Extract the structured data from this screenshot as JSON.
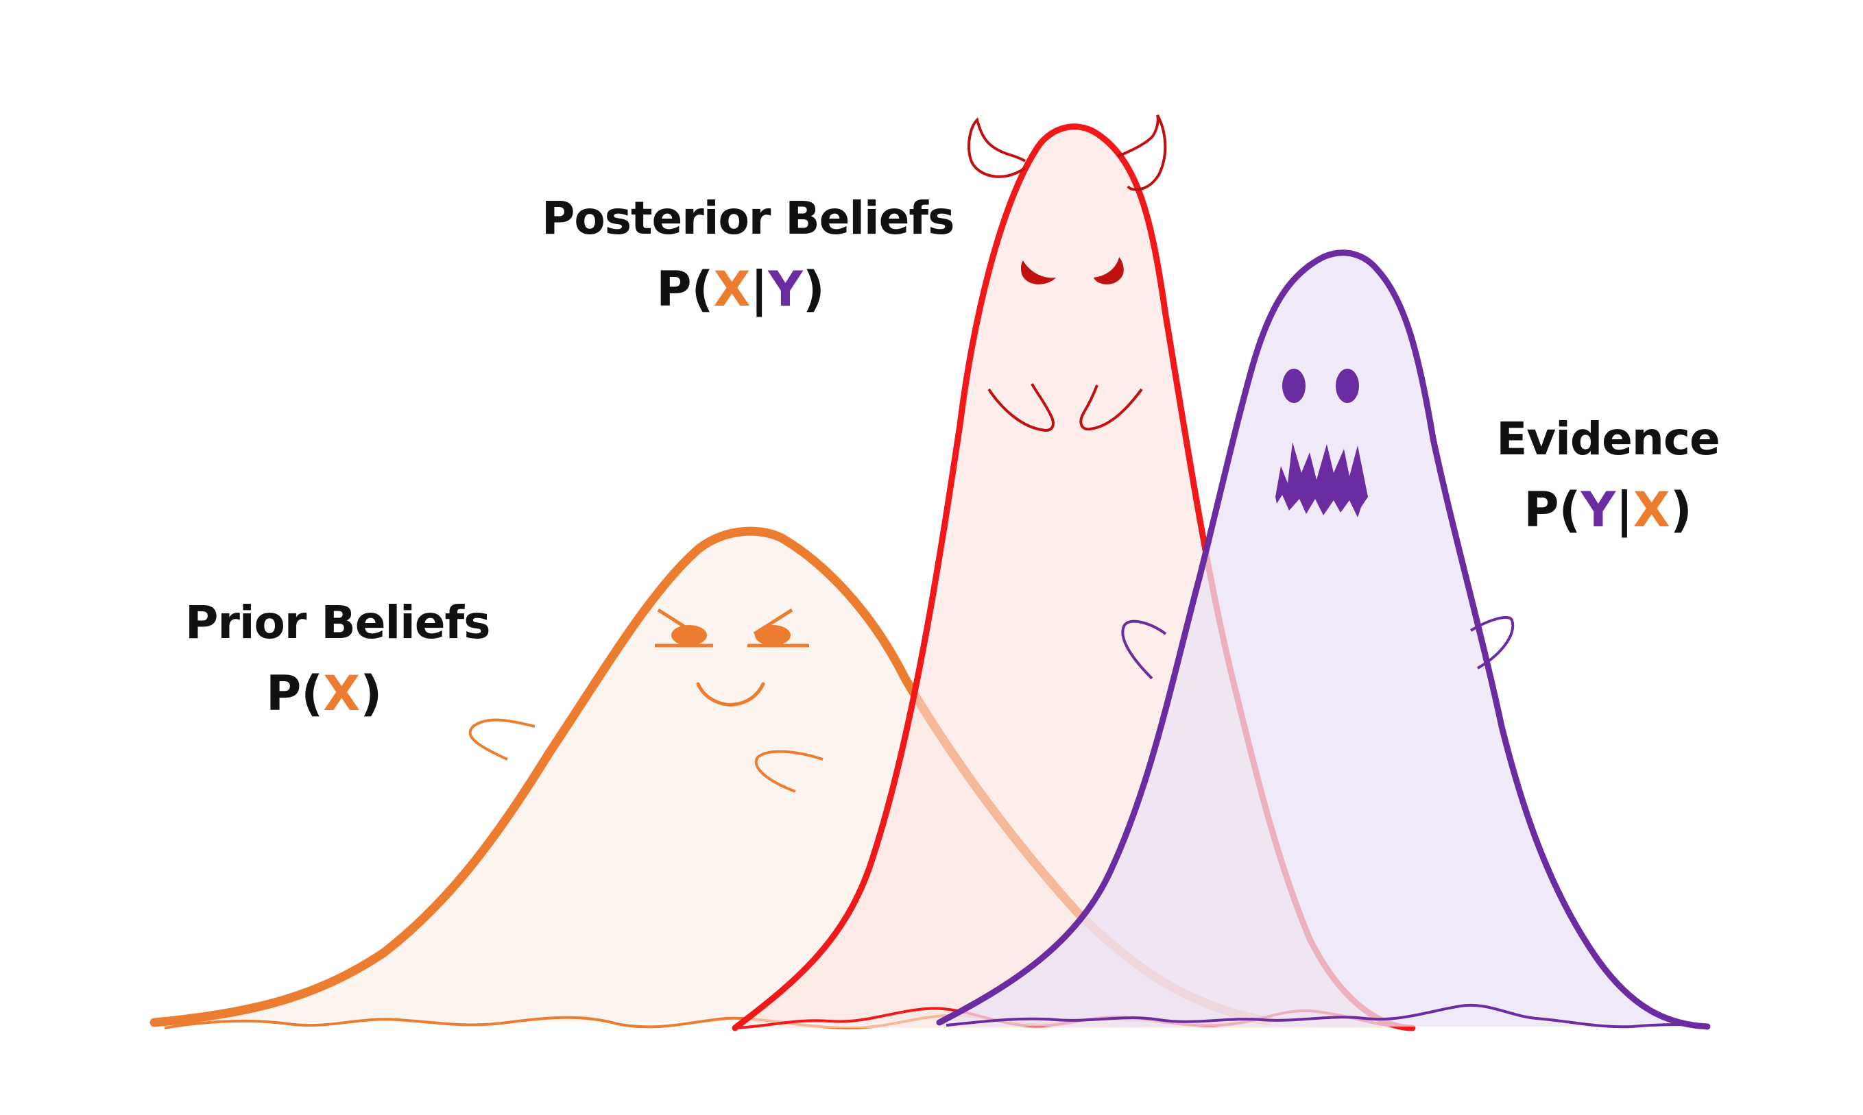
{
  "colors": {
    "prior": "#ec7c30",
    "posterior": "#f01818",
    "evidence": "#6a2ca0",
    "text": "#111111"
  },
  "labels": {
    "prior": {
      "title": "Prior Beliefs",
      "formula": {
        "p": "P(",
        "a": "X",
        "sep": "",
        "b": "",
        "close": ")"
      }
    },
    "posterior": {
      "title": "Posterior Beliefs",
      "formula": {
        "p": "P(",
        "a": "X",
        "sep": "|",
        "b": "Y",
        "close": ")"
      }
    },
    "evidence": {
      "title": "Evidence",
      "formula": {
        "p": "P(",
        "a": "Y",
        "sep": "|",
        "b": "X",
        "close": ")"
      }
    }
  },
  "ghosts": [
    {
      "name": "prior-ghost",
      "expression": "angry-smirk"
    },
    {
      "name": "posterior-ghost",
      "expression": "devil-horns"
    },
    {
      "name": "evidence-ghost",
      "expression": "scared-fangs"
    }
  ]
}
